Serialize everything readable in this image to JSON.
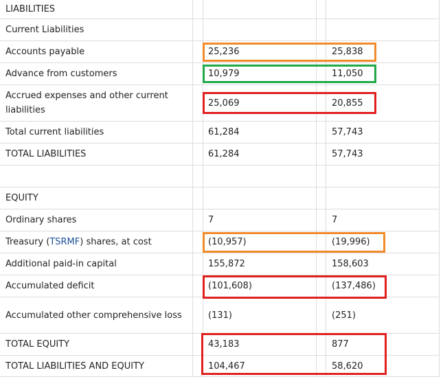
{
  "rows": [
    {
      "label": "LIABILITIES",
      "v1": "",
      "v2": ""
    },
    {
      "label": "Current Liabilities",
      "v1": "",
      "v2": ""
    },
    {
      "label": "Accounts payable",
      "v1": "25,236",
      "v2": "25,838"
    },
    {
      "label": "Advance from customers",
      "v1": "10,979",
      "v2": "11,050"
    },
    {
      "label": "Accrued expenses and other current liabilities",
      "v1": "25,069",
      "v2": "20,855"
    },
    {
      "label": "Total current liabilities",
      "v1": "61,284",
      "v2": "57,743"
    },
    {
      "label": "TOTAL LIABILITIES",
      "v1": "61,284",
      "v2": "57,743"
    },
    {
      "label": "",
      "v1": "",
      "v2": ""
    },
    {
      "label": "EQUITY",
      "v1": "",
      "v2": ""
    },
    {
      "label": "Ordinary shares",
      "v1": "7",
      "v2": "7"
    },
    {
      "label_prefix": "Treasury (",
      "ticker": "TSRMF",
      "label_suffix": ") shares, at cost",
      "v1": "(10,957)",
      "v2": "(19,996)"
    },
    {
      "label": "Additional paid-in capital",
      "v1": "155,872",
      "v2": "158,603"
    },
    {
      "label": "Accumulated deficit",
      "v1": "(101,608)",
      "v2": "(137,486)"
    },
    {
      "label": "Accumulated other comprehensive loss",
      "v1": "(131)",
      "v2": "(251)"
    },
    {
      "label": "TOTAL EQUITY",
      "v1": "43,183",
      "v2": "877"
    },
    {
      "label": "TOTAL LIABILITIES AND EQUITY",
      "v1": "104,467",
      "v2": "58,620"
    }
  ],
  "highlight_colors": {
    "orange": "#f28a2a",
    "green": "#1fa846",
    "red": "#e01e1e"
  }
}
